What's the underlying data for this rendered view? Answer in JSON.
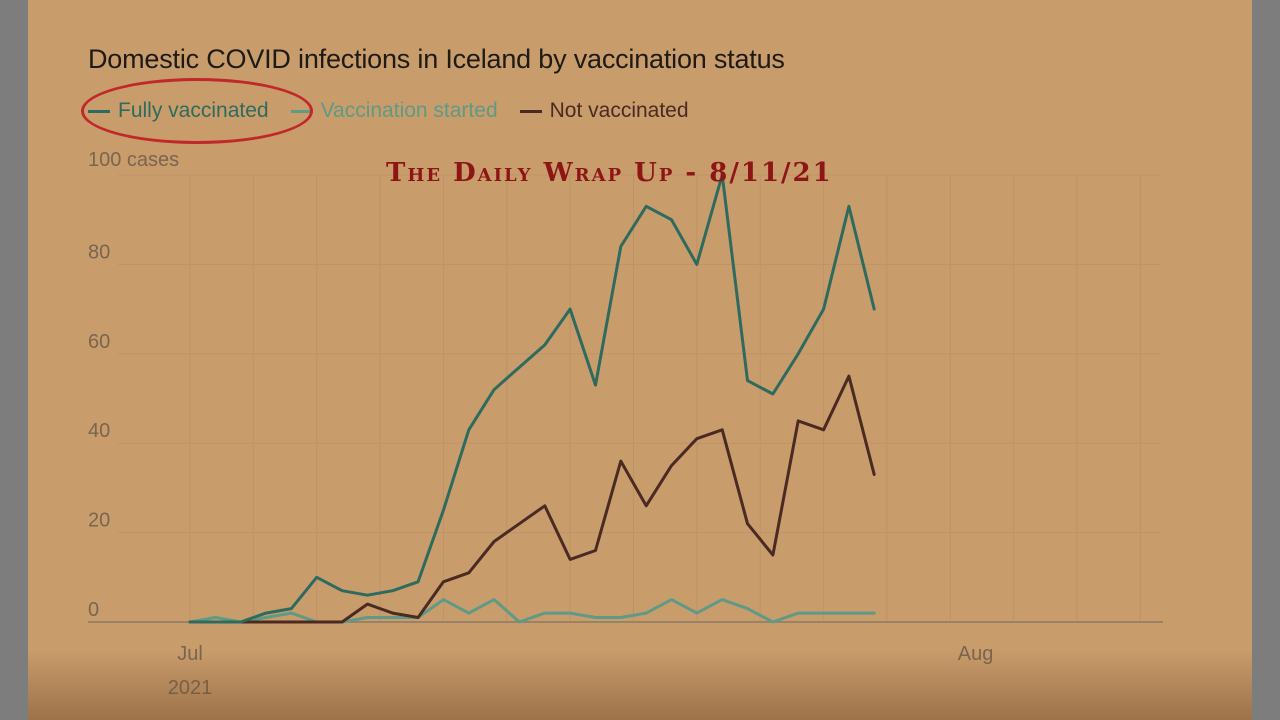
{
  "watermark": "The Daily Wrap Up - 8/11/21",
  "colors": {
    "background": "#c99c6c",
    "fully_vaccinated": "#2e6b5e",
    "vaccination_started": "#5e9a86",
    "not_vaccinated": "#4a2a22",
    "highlight_circle": "#c0282a"
  },
  "chart_data": {
    "type": "line",
    "title": "Domestic COVID infections in Iceland by vaccination status",
    "y_unit_label": "100 cases",
    "ylim": [
      0,
      100
    ],
    "y_ticks": [
      0,
      20,
      40,
      60,
      80
    ],
    "x_labels": [
      {
        "day": 0,
        "label": "Jul",
        "sublabel": "2021"
      },
      {
        "day": 31,
        "label": "Aug",
        "sublabel": ""
      }
    ],
    "xlim": [
      0,
      38
    ],
    "grid": true,
    "legend_position": "top-left",
    "series": [
      {
        "name": "Fully vaccinated",
        "key": "fully_vaccinated",
        "values": [
          0,
          0,
          0,
          2,
          3,
          10,
          7,
          6,
          7,
          9,
          25,
          43,
          52,
          57,
          62,
          70,
          53,
          84,
          93,
          90,
          80,
          100,
          54,
          51,
          60,
          70,
          93,
          70
        ]
      },
      {
        "name": "Vaccination started",
        "key": "vaccination_started",
        "values": [
          0,
          1,
          0,
          1,
          2,
          0,
          0,
          1,
          1,
          1,
          5,
          2,
          5,
          0,
          2,
          2,
          1,
          1,
          2,
          5,
          2,
          5,
          3,
          0,
          2,
          2,
          2,
          2
        ]
      },
      {
        "name": "Not vaccinated",
        "key": "not_vaccinated",
        "values": [
          0,
          0,
          0,
          0,
          0,
          0,
          0,
          4,
          2,
          1,
          9,
          11,
          18,
          22,
          26,
          14,
          16,
          36,
          26,
          35,
          41,
          43,
          22,
          15,
          45,
          43,
          55,
          33
        ]
      }
    ],
    "x_days": [
      0,
      1,
      2,
      3,
      4,
      5,
      6,
      7,
      8,
      9,
      10,
      11,
      12,
      13,
      14,
      15,
      16,
      17,
      18,
      19,
      20,
      21,
      22,
      23,
      24,
      25,
      26,
      27
    ]
  }
}
